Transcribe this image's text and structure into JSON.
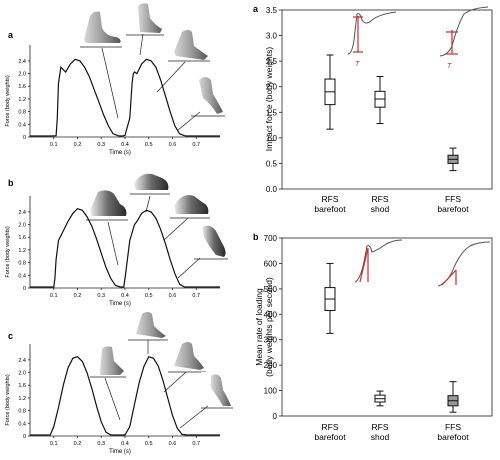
{
  "chart_data": [
    {
      "type": "line",
      "panel_label": "a",
      "foot_strike": "RFS barefoot",
      "xlabel": "Time (s)",
      "ylabel": "Force (body weights)",
      "xlim": [
        0,
        0.8
      ],
      "ylim": [
        0,
        2.9
      ],
      "xticks": [
        "0.1",
        "0.2",
        "0.3",
        "0.4",
        "0.5",
        "0.6",
        "0.7"
      ],
      "yticks": [
        "0",
        "0.4",
        "0.8",
        "1.2",
        "1.6",
        "2.0",
        "2.4"
      ],
      "series": [
        {
          "x": [
            0,
            0.03,
            0.05,
            0.07,
            0.09,
            0.11,
            0.115,
            0.12,
            0.13,
            0.15,
            0.17,
            0.19,
            0.21,
            0.23,
            0.25,
            0.27,
            0.29,
            0.31,
            0.33,
            0.35,
            0.37,
            0.38,
            0.39,
            0.4,
            0.42,
            0.43,
            0.435,
            0.44,
            0.45,
            0.47,
            0.49,
            0.51,
            0.53,
            0.55,
            0.57,
            0.59,
            0.61,
            0.63,
            0.65,
            0.66,
            0.8
          ],
          "y": [
            0.03,
            0.03,
            0.03,
            0.03,
            0.03,
            0.04,
            0.6,
            1.7,
            2.2,
            2.05,
            2.3,
            2.45,
            2.4,
            2.2,
            1.9,
            1.5,
            1.1,
            0.7,
            0.35,
            0.1,
            0.04,
            0.03,
            0.03,
            0.05,
            0.6,
            1.7,
            2.0,
            2.05,
            2.0,
            2.3,
            2.45,
            2.4,
            2.2,
            1.8,
            1.3,
            0.8,
            0.35,
            0.1,
            0.04,
            0.03,
            0.03
          ]
        }
      ]
    },
    {
      "type": "line",
      "panel_label": "b",
      "foot_strike": "RFS shod",
      "xlabel": "Time (s)",
      "ylabel": "Force (body weights)",
      "xlim": [
        0,
        0.8
      ],
      "ylim": [
        0,
        2.9
      ],
      "xticks": [
        "0.1",
        "0.2",
        "0.3",
        "0.4",
        "0.5",
        "0.6",
        "0.7"
      ],
      "yticks": [
        "0",
        "0.4",
        "0.8",
        "1.2",
        "1.6",
        "2.0",
        "2.4"
      ],
      "series": [
        {
          "x": [
            0,
            0.06,
            0.1,
            0.105,
            0.11,
            0.12,
            0.14,
            0.16,
            0.18,
            0.2,
            0.22,
            0.24,
            0.26,
            0.28,
            0.3,
            0.32,
            0.34,
            0.36,
            0.38,
            0.395,
            0.4,
            0.42,
            0.44,
            0.45,
            0.47,
            0.49,
            0.51,
            0.53,
            0.55,
            0.57,
            0.59,
            0.61,
            0.63,
            0.65,
            0.8
          ],
          "y": [
            0.03,
            0.03,
            0.03,
            0.3,
            0.9,
            1.5,
            1.8,
            2.1,
            2.35,
            2.5,
            2.45,
            2.25,
            1.95,
            1.55,
            1.1,
            0.65,
            0.3,
            0.08,
            0.03,
            0.03,
            0.3,
            1.5,
            2.0,
            2.1,
            2.35,
            2.45,
            2.4,
            2.2,
            1.85,
            1.4,
            0.9,
            0.45,
            0.12,
            0.03,
            0.03
          ]
        }
      ]
    },
    {
      "type": "line",
      "panel_label": "c",
      "foot_strike": "FFS barefoot",
      "xlabel": "Time (s)",
      "ylabel": "Force (body weights)",
      "xlim": [
        0,
        0.8
      ],
      "ylim": [
        0,
        2.9
      ],
      "xticks": [
        "0.1",
        "0.2",
        "0.3",
        "0.4",
        "0.5",
        "0.6",
        "0.7"
      ],
      "yticks": [
        "0",
        "0.4",
        "0.8",
        "1.2",
        "1.6",
        "2.0",
        "2.4"
      ],
      "series": [
        {
          "x": [
            0,
            0.05,
            0.085,
            0.1,
            0.12,
            0.14,
            0.16,
            0.18,
            0.2,
            0.22,
            0.24,
            0.26,
            0.28,
            0.3,
            0.32,
            0.34,
            0.36,
            0.38,
            0.4,
            0.42,
            0.44,
            0.46,
            0.48,
            0.5,
            0.52,
            0.54,
            0.56,
            0.58,
            0.6,
            0.62,
            0.64,
            0.66,
            0.68,
            0.7,
            0.8
          ],
          "y": [
            0.03,
            0.03,
            0.03,
            0.3,
            0.9,
            1.6,
            2.15,
            2.45,
            2.5,
            2.35,
            2.0,
            1.5,
            0.95,
            0.45,
            0.12,
            0.03,
            0.03,
            0.03,
            0.03,
            0.3,
            1.0,
            1.7,
            2.2,
            2.5,
            2.45,
            2.2,
            1.75,
            1.2,
            0.65,
            0.25,
            0.05,
            0.03,
            0.03,
            0.03,
            0.03
          ]
        }
      ]
    },
    {
      "type": "box",
      "panel_label": "a",
      "ylabel": "Impact force (body weights)",
      "ylim": [
        0,
        3.5
      ],
      "yticks": [
        "0.0",
        "0.5",
        "1.0",
        "1.5",
        "2.0",
        "2.5",
        "3.0",
        "3.5"
      ],
      "categories": [
        [
          "RFS",
          "barefoot"
        ],
        [
          "RFS",
          "shod"
        ],
        [
          "FFS",
          "barefoot"
        ]
      ],
      "boxes": [
        {
          "min": 1.17,
          "q1": 1.65,
          "median": 1.9,
          "q3": 2.15,
          "max": 2.62
        },
        {
          "min": 1.28,
          "q1": 1.6,
          "median": 1.76,
          "q3": 1.91,
          "max": 2.2
        },
        {
          "min": 0.36,
          "q1": 0.5,
          "median": 0.58,
          "q3": 0.66,
          "max": 0.8
        }
      ],
      "filled_box_index": 2,
      "inset_label": "T"
    },
    {
      "type": "box",
      "panel_label": "b",
      "ylabel": "Mean rate of loading\n(body weights per second)",
      "ylim": [
        0,
        700
      ],
      "yticks": [
        "0",
        "100",
        "200",
        "300",
        "400",
        "500",
        "600",
        "700"
      ],
      "categories": [
        [
          "RFS",
          "barefoot"
        ],
        [
          "RFS",
          "shod"
        ],
        [
          "FFS",
          "barefoot"
        ]
      ],
      "boxes": [
        {
          "min": 325,
          "q1": 415,
          "median": 460,
          "q3": 505,
          "max": 600
        },
        {
          "min": 40,
          "q1": 55,
          "median": 68,
          "q3": 82,
          "max": 98
        },
        {
          "min": 15,
          "q1": 40,
          "median": 60,
          "q3": 80,
          "max": 135
        }
      ],
      "filled_box_index": 2
    }
  ],
  "colors": {
    "trace": "#111111",
    "accent_red": "#d4282a",
    "filled_box": "#9a9a9a",
    "foot_dark": "#555555",
    "foot_light": "#d8d8d8"
  }
}
